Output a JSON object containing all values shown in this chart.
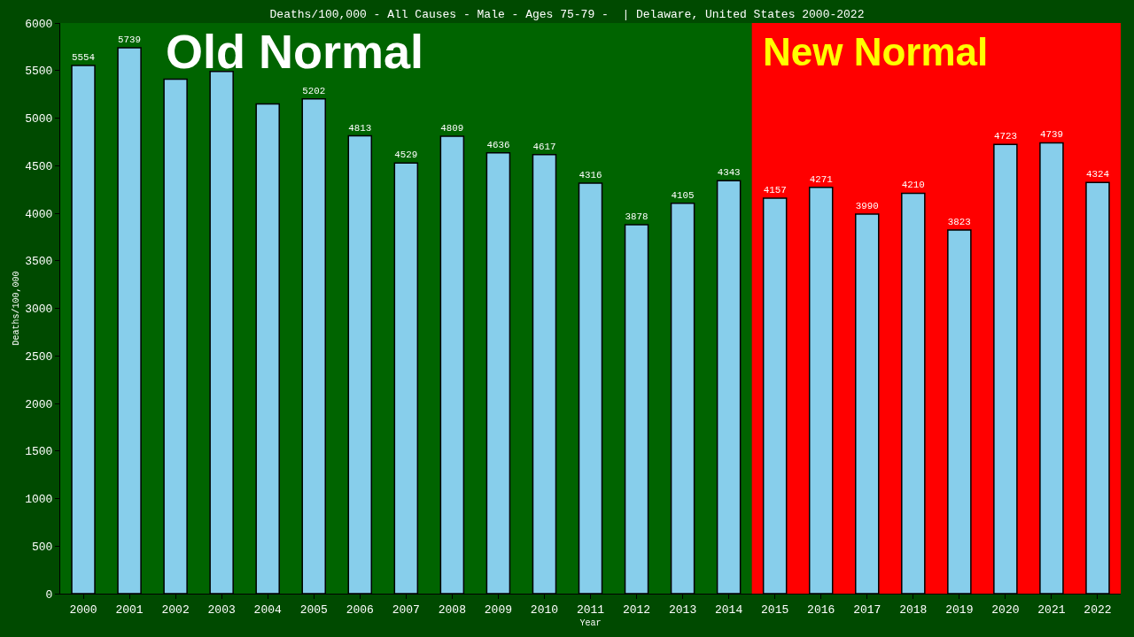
{
  "chart_data": {
    "type": "bar",
    "title": "Deaths/100,000 - All Causes - Male - Ages 75-79 -  | Delaware, United States 2000-2022",
    "xlabel": "Year",
    "ylabel": "Deaths/100,000",
    "categories": [
      "2000",
      "2001",
      "2002",
      "2003",
      "2004",
      "2005",
      "2006",
      "2007",
      "2008",
      "2009",
      "2010",
      "2011",
      "2012",
      "2013",
      "2014",
      "2015",
      "2016",
      "2017",
      "2018",
      "2019",
      "2020",
      "2021",
      "2022"
    ],
    "values": [
      5554,
      5739,
      5410,
      5490,
      5150,
      5202,
      4813,
      4529,
      4809,
      4636,
      4617,
      4316,
      3878,
      4105,
      4343,
      4157,
      4271,
      3990,
      4210,
      3823,
      4723,
      4739,
      4324
    ],
    "value_labels": [
      "5554",
      "5739",
      null,
      null,
      null,
      "5202",
      "4813",
      "4529",
      "4809",
      "4636",
      "4617",
      "4316",
      "3878",
      "4105",
      "4343",
      "4157",
      "4271",
      "3990",
      "4210",
      "3823",
      "4723",
      "4739",
      "4324"
    ],
    "color": "#87ceeb",
    "ylim": [
      0,
      6000
    ],
    "yticks": [
      0,
      500,
      1000,
      1500,
      2000,
      2500,
      3000,
      3500,
      4000,
      4500,
      5000,
      5500,
      6000
    ],
    "bands": [
      {
        "axis": "x",
        "from": "2000",
        "to": "2014",
        "label": "Old Normal",
        "color": "#006400"
      },
      {
        "axis": "x",
        "from": "2015",
        "to": "2022",
        "label": "New Normal",
        "color": "#ff0000"
      }
    ],
    "grid": false,
    "legend": false
  }
}
